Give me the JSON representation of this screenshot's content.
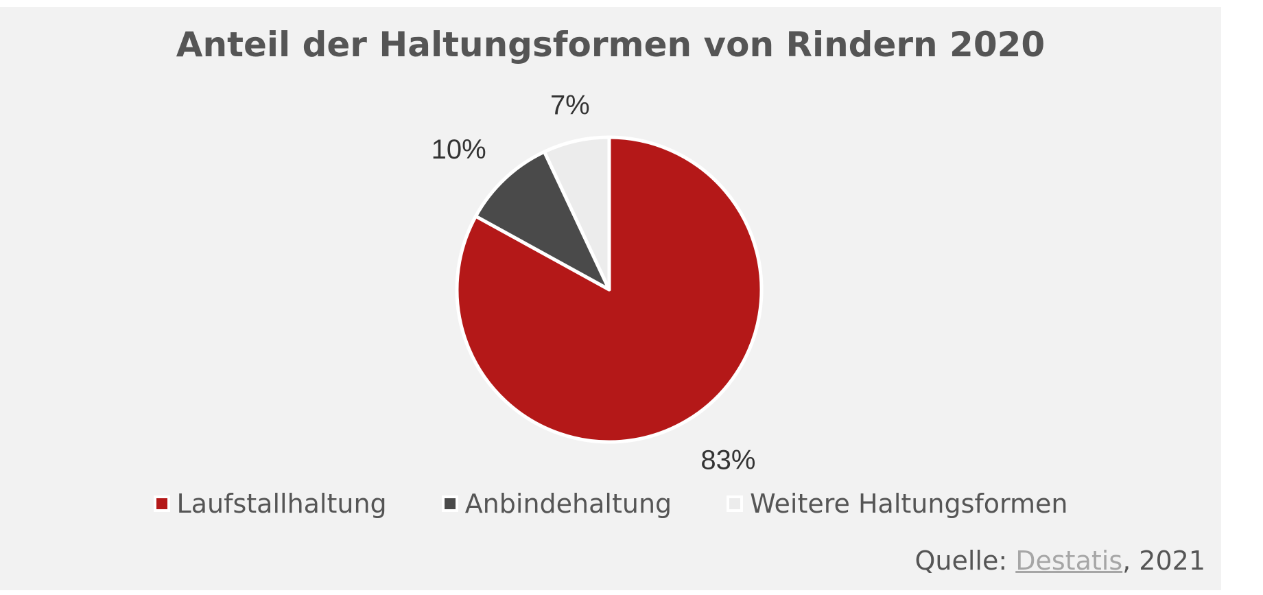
{
  "chart_data": {
    "type": "pie",
    "title": "Anteil der Haltungsformen von Rindern 2020",
    "categories": [
      "Laufstallhaltung",
      "Anbindehaltung",
      "Weitere Haltungsformen"
    ],
    "values": [
      83,
      10,
      7
    ],
    "labels": [
      "83%",
      "10%",
      "7%"
    ],
    "colors": [
      "#b41818",
      "#4a4a4a",
      "#ececec"
    ],
    "legend_position": "bottom"
  },
  "source": {
    "prefix": "Quelle: ",
    "link_text": "Destatis",
    "suffix": ", 2021"
  }
}
